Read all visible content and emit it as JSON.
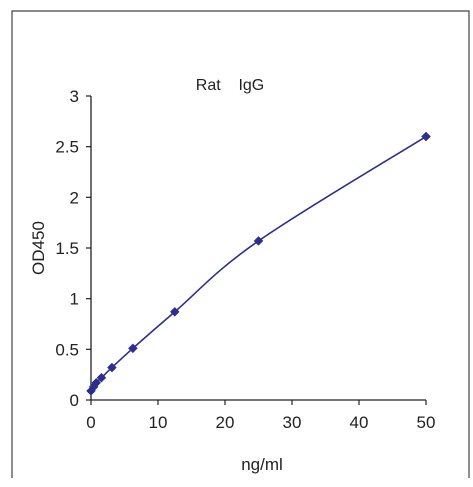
{
  "chart_data": {
    "type": "scatter",
    "title": "Rat    IgG",
    "xlabel": "ng/ml",
    "ylabel": "OD450",
    "xlim": [
      0,
      50
    ],
    "ylim": [
      0,
      3
    ],
    "xticks": [
      "0",
      "10",
      "20",
      "30",
      "40",
      "50"
    ],
    "yticks": [
      "0",
      "0.5",
      "1",
      "1.5",
      "2",
      "2.5",
      "3"
    ],
    "x": [
      0,
      0.39,
      0.78,
      1.56,
      3.125,
      6.25,
      12.5,
      25,
      50
    ],
    "y": [
      0.09,
      0.13,
      0.17,
      0.22,
      0.32,
      0.51,
      0.87,
      1.57,
      2.6
    ],
    "grid": false,
    "legend": "none",
    "trendline": true,
    "colors": {
      "series": "#2e2f8c",
      "axis": "#222222",
      "frame": "#444444"
    }
  }
}
